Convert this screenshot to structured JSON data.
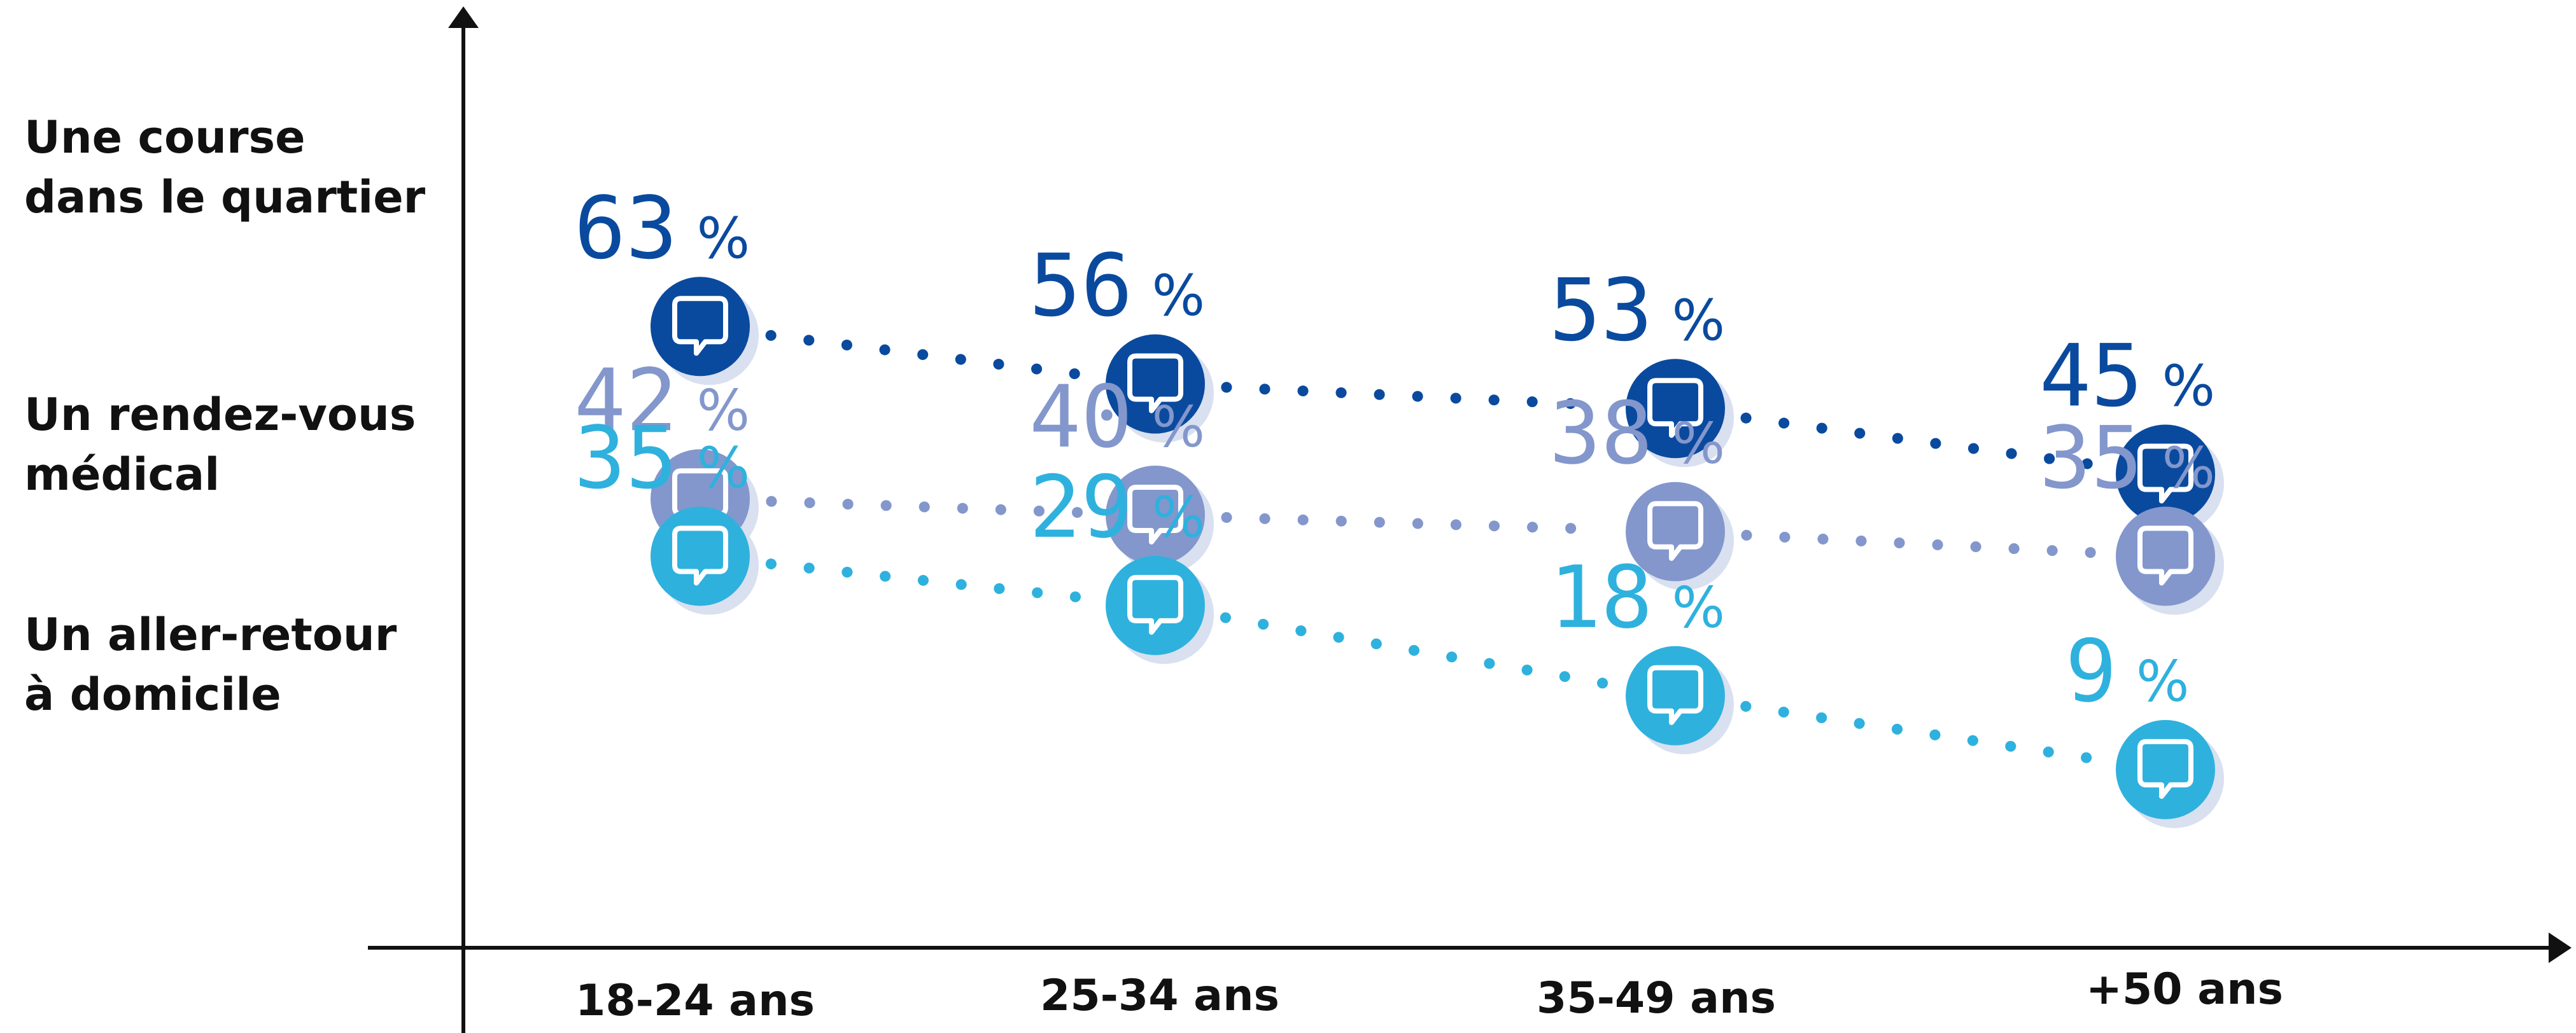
{
  "chart_data": {
    "type": "line",
    "categories": [
      "18-24 ans",
      "25-34 ans",
      "35-49 ans",
      "+50 ans"
    ],
    "value_suffix": "%",
    "series": [
      {
        "name": "Une course dans le quartier",
        "name_lines": [
          "Une course",
          "dans le quartier"
        ],
        "values": [
          63,
          56,
          53,
          45
        ],
        "color": "#0a4a9e"
      },
      {
        "name": "Un rendez-vous médical",
        "name_lines": [
          "Un rendez-vous",
          "médical"
        ],
        "values": [
          42,
          40,
          38,
          35
        ],
        "color": "#8397cc"
      },
      {
        "name": "Un aller-retour à domicile",
        "name_lines": [
          "Un aller-retour",
          "à domicile"
        ],
        "values": [
          35,
          29,
          18,
          9
        ],
        "color": "#2fb1de"
      }
    ],
    "marker_icon": "speech-bubble-icon",
    "line_style": "dotted",
    "grid": false,
    "legend": "left, labels beside each series"
  }
}
